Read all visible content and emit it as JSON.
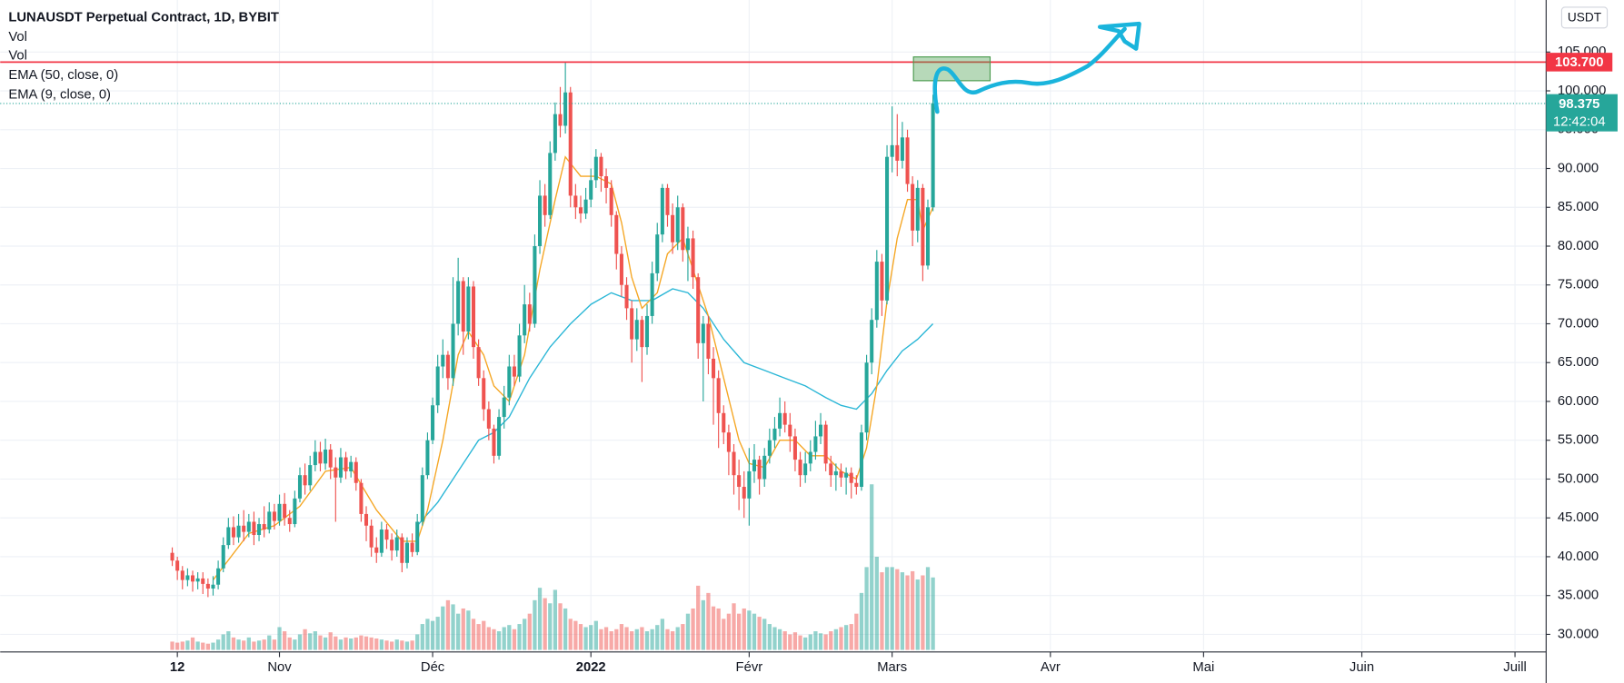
{
  "chart_data": {
    "type": "candlestick",
    "title": "LUNAUSDT Perpetual Contract, 1D, BYBIT",
    "indicator_labels": [
      "Vol",
      "Vol"
    ],
    "currency": "USDT",
    "up_color": "#26a69a",
    "down_color": "#ef5350",
    "xlim": [
      -33.7,
      269.1
    ],
    "ylim": [
      28.0,
      111.7
    ],
    "grid": true,
    "xticks": [
      {
        "value": 1,
        "label": "12"
      },
      {
        "value": 21,
        "label": "Nov"
      },
      {
        "value": 51,
        "label": "Déc"
      },
      {
        "value": 82,
        "label": "2022"
      },
      {
        "value": 113,
        "label": "Févr"
      },
      {
        "value": 141,
        "label": "Mars"
      },
      {
        "value": 172,
        "label": "Avr"
      },
      {
        "value": 202,
        "label": "Mai"
      },
      {
        "value": 233,
        "label": "Juin"
      },
      {
        "value": 263,
        "label": "Juill"
      }
    ],
    "yticks": [
      {
        "value": 30,
        "label": "30.000"
      },
      {
        "value": 35,
        "label": "35.000"
      },
      {
        "value": 40,
        "label": "40.000"
      },
      {
        "value": 45,
        "label": "45.000"
      },
      {
        "value": 50,
        "label": "50.000"
      },
      {
        "value": 55,
        "label": "55.000"
      },
      {
        "value": 60,
        "label": "60.000"
      },
      {
        "value": 65,
        "label": "65.000"
      },
      {
        "value": 70,
        "label": "70.000"
      },
      {
        "value": 75,
        "label": "75.000"
      },
      {
        "value": 80,
        "label": "80.000"
      },
      {
        "value": 85,
        "label": "85.000"
      },
      {
        "value": 90,
        "label": "90.000"
      },
      {
        "value": 95,
        "label": "95.000"
      },
      {
        "value": 100,
        "label": "100.000"
      },
      {
        "value": 105,
        "label": "105.000"
      }
    ],
    "open": [
      40.5,
      39.5,
      38.2,
      37.0,
      37.6,
      36.8,
      37.2,
      36.5,
      35.9,
      36.4,
      38.5,
      41.5,
      43.8,
      42.5,
      44.0,
      43.2,
      44.5,
      42.8,
      44.2,
      43.5,
      45.8,
      44.6,
      46.8,
      45.0,
      44.2,
      47.5,
      50.5,
      49.2,
      51.8,
      53.5,
      52.0,
      53.8,
      51.5,
      50.2,
      52.8,
      51.0,
      52.2,
      49.5,
      45.5,
      44.0,
      41.2,
      40.5,
      43.5,
      42.2,
      40.8,
      42.5,
      39.2,
      41.8,
      40.6,
      44.5,
      50.5,
      55.0,
      59.5,
      64.5,
      66.0,
      63.0,
      70.0,
      75.5,
      69.0,
      74.8,
      67.0,
      63.0,
      59.0,
      56.5,
      53.0,
      58.0,
      60.5,
      64.5,
      63.2,
      68.5,
      72.5,
      70.0,
      80.0,
      86.5,
      84.0,
      92.0,
      97.0,
      95.5,
      99.8,
      86.5,
      85.0,
      84.2,
      86.0,
      88.5,
      91.5,
      89.0,
      87.5,
      84.0,
      79.0,
      75.0,
      72.0,
      68.0,
      70.5,
      67.0,
      71.0,
      76.5,
      81.5,
      87.5,
      84.0,
      80.5,
      85.0,
      79.5,
      81.0,
      76.0,
      67.5,
      70.0,
      65.5,
      63.0,
      58.5,
      56.0,
      53.5,
      50.5,
      49.0,
      47.5,
      51.0,
      52.5,
      50.0,
      53.0,
      55.0,
      56.5,
      58.5,
      57.0,
      55.5,
      52.5,
      50.5,
      52.0,
      53.5,
      55.5,
      57.0,
      52.0,
      50.5,
      51.0,
      50.2,
      50.8,
      49.5,
      49.0,
      56.0,
      65.0,
      70.5,
      78.0,
      73.0,
      91.5,
      93.0,
      91.0,
      94.0,
      88.0,
      82.0,
      87.5,
      77.5,
      85.0
    ],
    "high": [
      41.2,
      40.0,
      38.8,
      38.5,
      38.2,
      38.0,
      38.0,
      37.2,
      37.5,
      39.5,
      42.5,
      45.0,
      45.2,
      45.5,
      46.0,
      45.5,
      45.8,
      45.0,
      46.5,
      47.0,
      46.8,
      48.0,
      48.2,
      46.0,
      48.5,
      51.5,
      52.0,
      53.0,
      55.0,
      54.8,
      55.2,
      54.5,
      52.8,
      54.0,
      53.5,
      53.0,
      52.8,
      50.0,
      46.5,
      44.8,
      42.5,
      44.5,
      44.2,
      43.0,
      43.5,
      43.0,
      42.5,
      43.0,
      45.5,
      51.5,
      56.0,
      60.5,
      66.0,
      68.0,
      66.5,
      76.0,
      78.5,
      76.0,
      76.0,
      75.5,
      68.0,
      64.0,
      60.0,
      57.0,
      59.0,
      62.0,
      66.0,
      66.0,
      70.0,
      75.0,
      74.0,
      81.5,
      88.5,
      88.0,
      93.5,
      98.5,
      100.5,
      103.7,
      100.5,
      88.0,
      86.5,
      87.5,
      90.0,
      92.5,
      92.0,
      90.0,
      88.5,
      84.5,
      80.0,
      76.0,
      73.0,
      72.0,
      71.0,
      72.5,
      78.0,
      83.0,
      88.0,
      88.0,
      85.5,
      86.5,
      85.5,
      82.5,
      82.0,
      76.5,
      71.0,
      71.0,
      67.0,
      64.0,
      59.5,
      57.0,
      54.5,
      52.5,
      51.0,
      54.0,
      54.5,
      53.0,
      54.0,
      56.5,
      58.0,
      60.5,
      60.0,
      58.5,
      56.5,
      53.5,
      53.5,
      55.0,
      57.5,
      58.5,
      57.5,
      53.0,
      52.0,
      52.0,
      51.5,
      51.5,
      50.5,
      57.0,
      66.0,
      72.0,
      79.5,
      79.0,
      93.0,
      98.0,
      97.0,
      96.0,
      95.0,
      89.0,
      88.5,
      88.0,
      86.0,
      99.5
    ],
    "low": [
      38.8,
      37.0,
      35.8,
      36.2,
      35.5,
      35.8,
      35.2,
      34.8,
      35.0,
      35.8,
      38.0,
      41.0,
      41.5,
      41.8,
      42.0,
      42.5,
      41.5,
      42.0,
      42.5,
      43.0,
      43.5,
      44.0,
      44.0,
      43.2,
      43.8,
      47.0,
      48.0,
      48.5,
      51.0,
      51.0,
      51.2,
      50.0,
      44.5,
      49.5,
      50.0,
      50.2,
      48.5,
      44.5,
      42.0,
      40.0,
      39.2,
      40.0,
      41.0,
      39.5,
      40.0,
      38.0,
      38.5,
      40.0,
      40.2,
      44.0,
      50.0,
      54.5,
      58.5,
      63.0,
      61.5,
      62.0,
      68.5,
      66.0,
      68.0,
      65.5,
      62.0,
      57.5,
      55.0,
      52.0,
      52.5,
      56.5,
      59.5,
      62.0,
      62.5,
      67.5,
      69.0,
      69.5,
      79.0,
      82.5,
      83.5,
      91.0,
      94.0,
      94.5,
      85.0,
      83.5,
      83.0,
      83.5,
      85.0,
      87.5,
      87.0,
      85.5,
      82.5,
      77.0,
      73.5,
      70.5,
      65.0,
      66.5,
      62.5,
      66.0,
      70.0,
      75.5,
      80.5,
      82.5,
      79.0,
      79.5,
      78.0,
      75.5,
      74.5,
      65.5,
      60.0,
      63.5,
      57.0,
      54.0,
      54.5,
      50.5,
      48.0,
      46.0,
      45.0,
      44.0,
      49.5,
      48.0,
      49.0,
      52.0,
      54.0,
      55.5,
      56.0,
      53.5,
      51.0,
      49.0,
      49.5,
      51.0,
      52.5,
      54.5,
      51.0,
      49.0,
      48.5,
      49.0,
      48.0,
      47.5,
      48.0,
      48.5,
      55.0,
      63.5,
      69.5,
      71.0,
      72.5,
      89.5,
      89.0,
      90.0,
      87.0,
      80.0,
      80.5,
      75.5,
      77.0,
      84.5
    ],
    "close": [
      39.5,
      38.2,
      37.0,
      37.6,
      36.8,
      37.2,
      36.5,
      35.9,
      36.4,
      38.5,
      41.5,
      43.8,
      42.5,
      44.0,
      43.2,
      44.5,
      42.8,
      44.2,
      43.5,
      45.8,
      44.6,
      46.8,
      45.0,
      44.2,
      47.5,
      50.5,
      49.2,
      51.8,
      53.5,
      52.0,
      53.8,
      51.5,
      50.2,
      52.8,
      51.0,
      52.2,
      49.5,
      45.5,
      44.0,
      41.2,
      40.5,
      43.5,
      42.2,
      40.8,
      42.5,
      39.2,
      41.8,
      40.6,
      44.5,
      50.5,
      55.0,
      59.5,
      64.5,
      66.0,
      63.0,
      70.0,
      75.5,
      69.0,
      74.8,
      67.0,
      63.0,
      59.0,
      56.5,
      53.0,
      58.0,
      60.5,
      64.5,
      63.2,
      68.5,
      72.5,
      70.0,
      80.0,
      86.5,
      84.0,
      92.0,
      97.0,
      95.5,
      99.8,
      86.5,
      85.0,
      84.2,
      86.0,
      88.5,
      91.5,
      89.0,
      87.5,
      84.0,
      79.0,
      75.0,
      72.0,
      68.0,
      70.5,
      67.0,
      71.0,
      76.5,
      81.5,
      87.5,
      84.0,
      80.5,
      85.0,
      79.5,
      81.0,
      76.0,
      67.5,
      70.0,
      65.5,
      63.0,
      58.5,
      56.0,
      53.5,
      50.5,
      49.0,
      47.5,
      51.0,
      52.5,
      50.0,
      53.0,
      55.0,
      56.5,
      58.5,
      57.0,
      55.5,
      52.5,
      50.5,
      52.0,
      53.5,
      55.5,
      57.0,
      52.0,
      50.5,
      51.0,
      50.2,
      50.8,
      49.5,
      49.0,
      56.0,
      65.0,
      70.5,
      78.0,
      73.0,
      91.5,
      93.0,
      91.0,
      94.0,
      88.0,
      82.0,
      87.5,
      77.5,
      85.0,
      98.4
    ],
    "volume": [
      8,
      7,
      8,
      9,
      12,
      8,
      7,
      6,
      7,
      10,
      15,
      18,
      12,
      10,
      9,
      12,
      8,
      9,
      10,
      14,
      10,
      22,
      18,
      12,
      10,
      15,
      20,
      16,
      18,
      14,
      12,
      17,
      13,
      10,
      12,
      11,
      12,
      14,
      13,
      12,
      11,
      10,
      9,
      8,
      10,
      9,
      8,
      9,
      15,
      25,
      30,
      28,
      32,
      42,
      48,
      44,
      35,
      40,
      38,
      30,
      25,
      28,
      22,
      20,
      18,
      22,
      24,
      20,
      25,
      30,
      35,
      48,
      60,
      50,
      45,
      58,
      45,
      40,
      30,
      28,
      25,
      22,
      24,
      28,
      20,
      22,
      18,
      20,
      25,
      22,
      18,
      20,
      22,
      18,
      20,
      24,
      30,
      20,
      18,
      22,
      25,
      35,
      40,
      62,
      48,
      55,
      42,
      40,
      30,
      35,
      45,
      35,
      40,
      38,
      35,
      32,
      30,
      25,
      22,
      20,
      18,
      15,
      17,
      14,
      12,
      15,
      18,
      16,
      15,
      18,
      20,
      22,
      24,
      25,
      35,
      55,
      80,
      160,
      90,
      75,
      80,
      80,
      78,
      75,
      72,
      76,
      68,
      72,
      80,
      70
    ],
    "series": [
      {
        "name": "EMA (50, close, 0)",
        "color": "#29b6d6",
        "x": [
          48,
          52,
          56,
          60,
          63,
          66,
          70,
          74,
          78,
          82,
          86,
          90,
          94,
          98,
          101,
          104,
          108,
          112,
          116,
          120,
          124,
          128,
          131,
          134,
          137,
          140,
          143,
          146,
          149
        ],
        "values": [
          44,
          47,
          51,
          55,
          56,
          58,
          63,
          67,
          70,
          72.5,
          74,
          73,
          73,
          74.5,
          74,
          72,
          68,
          65,
          64,
          63,
          62,
          60.5,
          59.5,
          59,
          61,
          64,
          66.5,
          68,
          70
        ]
      },
      {
        "name": "EMA (9, close, 0)",
        "color": "#f5a623",
        "x": [
          8,
          15,
          20,
          25,
          30,
          35,
          40,
          45,
          48,
          50,
          53,
          56,
          58,
          61,
          63,
          66,
          69,
          72,
          75,
          77,
          80,
          83,
          86,
          88,
          90,
          92,
          95,
          97,
          100,
          103,
          105,
          108,
          111,
          113,
          116,
          119,
          122,
          125,
          128,
          131,
          134,
          136,
          138,
          140,
          142,
          144,
          146,
          147,
          149
        ],
        "values": [
          37,
          43,
          44,
          46.5,
          51,
          51.5,
          46,
          42,
          42,
          46,
          55,
          66,
          69,
          66,
          62,
          60,
          66,
          77,
          86,
          91.5,
          89,
          89,
          88,
          83,
          76,
          72,
          74,
          79,
          81,
          75,
          71,
          63,
          55,
          52,
          51.5,
          55,
          55,
          53,
          53,
          51,
          50,
          54,
          62,
          73,
          81,
          86,
          86,
          82,
          85
        ]
      }
    ],
    "horizontal_line": {
      "value": 103.7,
      "label": "103.700",
      "color": "#f23645"
    },
    "last_price": {
      "value": 98.375,
      "label": "98.375",
      "countdown": "12:42:04",
      "color": "#26a69a"
    }
  }
}
